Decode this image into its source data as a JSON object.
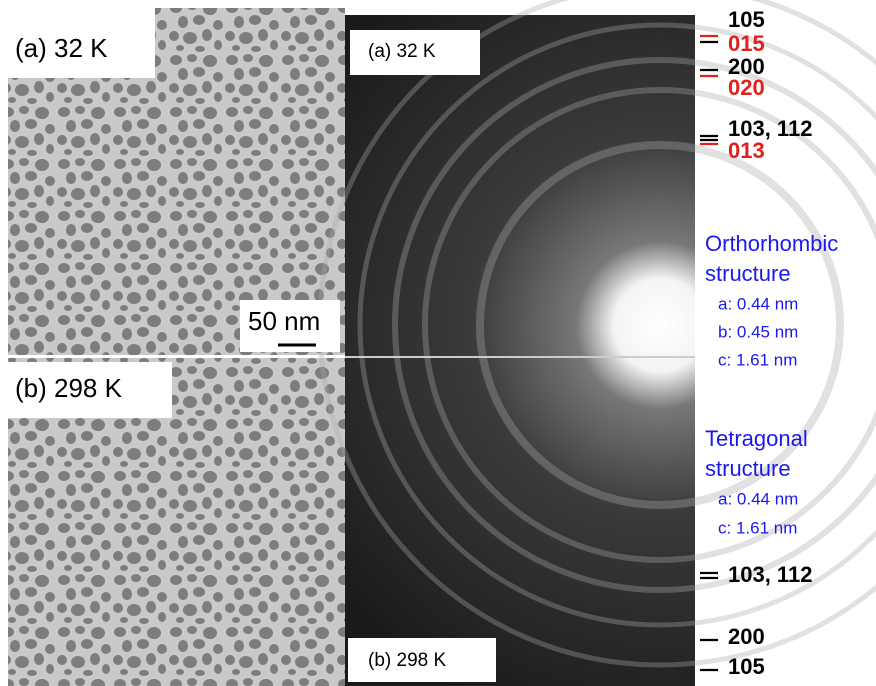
{
  "tem_panels": [
    {
      "label": "(a) 32 K"
    },
    {
      "label": "(b) 298 K"
    }
  ],
  "scale_bar": "50 nm",
  "diffraction_panels": [
    {
      "label": "(a) 32 K"
    },
    {
      "label": "(b) 298 K"
    }
  ],
  "top_indices": [
    {
      "black": "105",
      "red": "015"
    },
    {
      "black": "200",
      "red": "020"
    },
    {
      "black": "103, 112",
      "red": "013"
    }
  ],
  "orthorhombic": {
    "title": [
      "Orthorhombic",
      "structure"
    ],
    "params": [
      "a: 0.44 nm",
      "b: 0.45 nm",
      "c: 1.61 nm"
    ]
  },
  "tetragonal": {
    "title": [
      "Tetragonal",
      "structure"
    ],
    "params": [
      "a: 0.44 nm",
      "c: 1.61 nm"
    ]
  },
  "bottom_indices": [
    "103, 112",
    "200",
    "105"
  ]
}
